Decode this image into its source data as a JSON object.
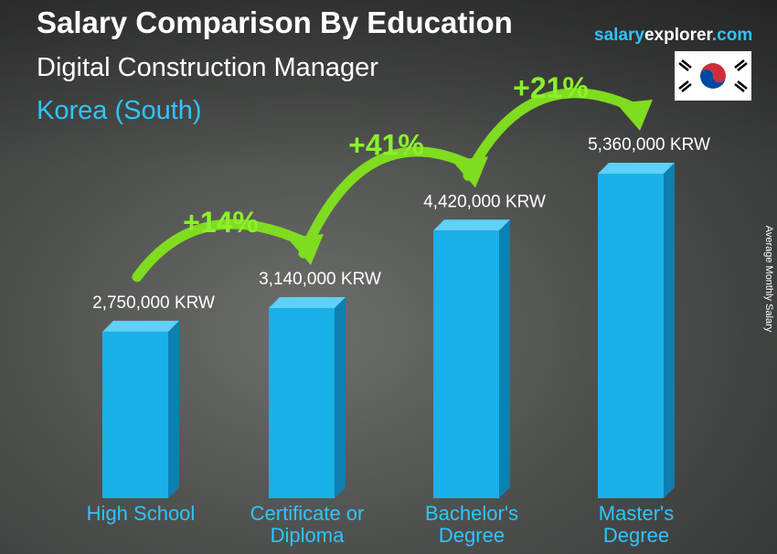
{
  "chart_data": {
    "type": "bar",
    "title": "Salary Comparison By Education",
    "subtitle": "Digital Construction Manager",
    "region": "Korea (South)",
    "brand": [
      "salary",
      "explorer",
      ".com"
    ],
    "y_label": "Average Monthly Salary",
    "categories": [
      "High School",
      "Certificate or Diploma",
      "Bachelor's Degree",
      "Master's Degree"
    ],
    "values": [
      2750000,
      3140000,
      4420000,
      5360000
    ],
    "value_labels": [
      "2,750,000 KRW",
      "3,140,000 KRW",
      "4,420,000 KRW",
      "5,360,000 KRW"
    ],
    "annotations": [
      "+14%",
      "+41%",
      "+21%"
    ],
    "color": "#1ab0e8"
  }
}
